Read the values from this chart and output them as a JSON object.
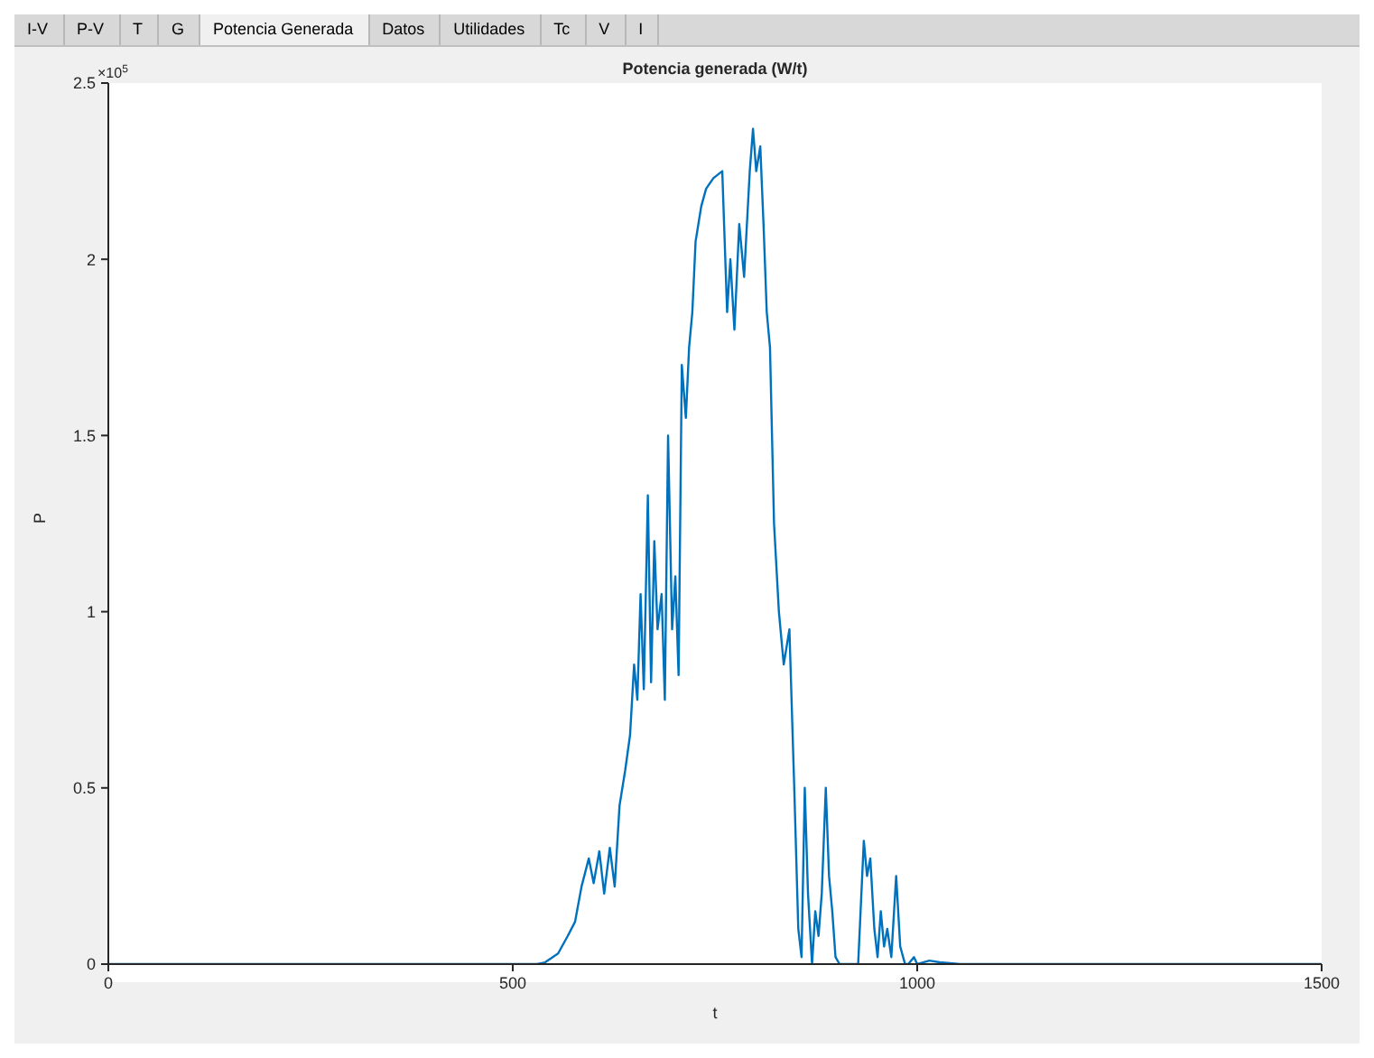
{
  "chart_data": {
    "type": "line",
    "title": "Potencia generada (W/t)",
    "xlabel": "t",
    "ylabel": "P",
    "annotations": [
      "I-V",
      "P-V",
      "T",
      "G",
      "Potencia Generada",
      "Datos",
      "Utilidades",
      "Tc",
      "V",
      "I",
      "×10$^{5}$"
    ],
    "xlim": [
      0,
      1500
    ],
    "xticks": [
      0,
      500,
      1000,
      1500
    ],
    "ylim": [
      0,
      2.5
    ],
    "yticks": [
      0,
      0.5,
      1,
      1.5,
      2,
      2.5
    ],
    "grid": false,
    "legend": false,
    "marker": "none",
    "line_style": "solid",
    "series": [
      {
        "color": "#0072bd",
        "x": [
          0,
          530,
          540,
          556,
          568,
          577,
          585,
          594,
          600,
          607,
          613,
          620,
          626,
          632,
          639,
          645,
          650,
          654,
          658,
          662,
          667,
          671,
          675,
          679,
          684,
          688,
          692,
          697,
          701,
          705,
          709,
          714,
          718,
          722,
          726,
          733,
          739,
          748,
          759,
          765,
          769,
          774,
          780,
          786,
          793,
          797,
          801,
          806,
          810,
          814,
          818,
          823,
          829,
          835,
          842,
          848,
          853,
          857,
          861,
          865,
          870,
          874,
          878,
          882,
          887,
          891,
          895,
          899,
          904,
          915,
          927,
          934,
          938,
          942,
          947,
          951,
          955,
          959,
          963,
          968,
          974,
          979,
          985,
          989,
          996,
          1000,
          1015,
          1028,
          1053,
          1500
        ],
        "values": [
          0,
          0,
          0.005,
          0.03,
          0.08,
          0.12,
          0.22,
          0.3,
          0.23,
          0.32,
          0.2,
          0.33,
          0.22,
          0.45,
          0.55,
          0.65,
          0.85,
          0.75,
          1.05,
          0.78,
          1.33,
          0.8,
          1.2,
          0.95,
          1.05,
          0.75,
          1.5,
          0.95,
          1.1,
          0.82,
          1.7,
          1.55,
          1.75,
          1.85,
          2.05,
          2.15,
          2.2,
          2.23,
          2.25,
          1.85,
          2,
          1.8,
          2.1,
          1.95,
          2.25,
          2.37,
          2.25,
          2.32,
          2.1,
          1.85,
          1.75,
          1.25,
          1,
          0.85,
          0.95,
          0.5,
          0.1,
          0.02,
          0.5,
          0.2,
          0,
          0.15,
          0.08,
          0.2,
          0.5,
          0.25,
          0.15,
          0.02,
          0,
          0,
          0,
          0.35,
          0.25,
          0.3,
          0.1,
          0.02,
          0.15,
          0.05,
          0.1,
          0.02,
          0.25,
          0.05,
          0,
          0,
          0.02,
          0,
          0.01,
          0.005,
          0,
          0
        ]
      }
    ]
  }
}
